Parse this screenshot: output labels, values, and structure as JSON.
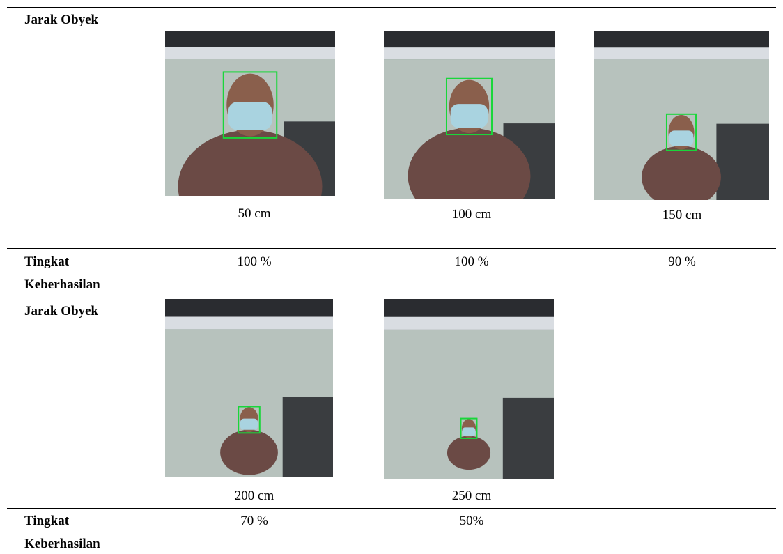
{
  "table": {
    "rows": [
      {
        "label": "Jarak Obyek",
        "cells": [
          "50 cm",
          "100 cm",
          "150 cm"
        ]
      },
      {
        "label": "Tingkat Keberhasilan",
        "cells": [
          "100 %",
          "100 %",
          "90 %"
        ]
      },
      {
        "label": "Jarak Obyek",
        "cells": [
          "200 cm",
          "250 cm"
        ]
      },
      {
        "label": "Tingkat Keberhasilan",
        "cells": [
          "70 %",
          "50%"
        ]
      }
    ]
  }
}
